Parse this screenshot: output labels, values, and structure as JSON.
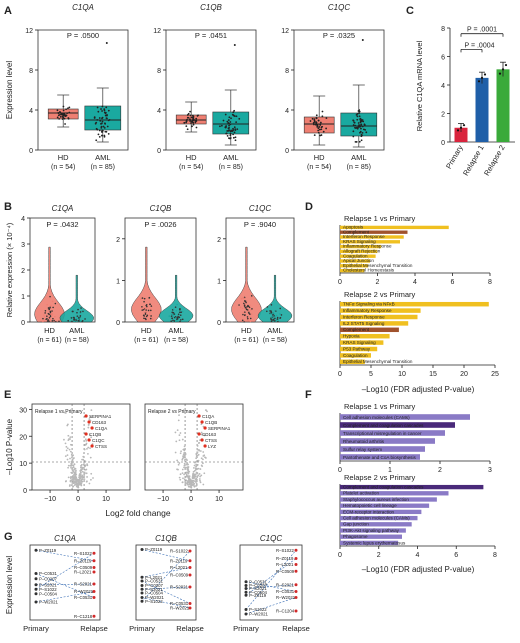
{
  "panels": {
    "A": "A",
    "B": "B",
    "C": "C",
    "D": "D",
    "E": "E",
    "F": "F",
    "G": "G"
  },
  "colors": {
    "hd_box": "#ef7f72",
    "aml_box": "#1aa9a0",
    "bar_primary": "#d9243d",
    "bar_relapse1": "#1f5fa8",
    "bar_relapse2": "#3aaa3a",
    "gsea_bar": "#f0c020",
    "kegg_bar_dark": "#4a2a7a",
    "kegg_bar": "#8a7ac6",
    "volcano_pt": "#b8b8b8",
    "volcano_hit": "#e03020",
    "pair_line": "#3b6fb5",
    "relapse_pt": "#d22a2a"
  },
  "chart_data": [
    {
      "id": "A",
      "type": "box",
      "ylabel": "Expression level",
      "ylim": [
        0,
        12
      ],
      "ticks": [
        0,
        4,
        8,
        12
      ],
      "groups": [
        "HD",
        "AML"
      ],
      "ns": [
        "(n = 54)",
        "(n = 85)"
      ],
      "subplots": [
        {
          "title": "C1QA",
          "p": "P = .0500",
          "boxes": [
            {
              "q1": 3.1,
              "med": 3.7,
              "q3": 4.1,
              "lo": 2.3,
              "hi": 5.5
            },
            {
              "q1": 2.0,
              "med": 3.0,
              "q3": 4.4,
              "lo": 0.8,
              "hi": 6.2
            }
          ]
        },
        {
          "title": "C1QB",
          "p": "P = .0451",
          "boxes": [
            {
              "q1": 2.6,
              "med": 3.0,
              "q3": 3.5,
              "lo": 1.8,
              "hi": 4.8
            },
            {
              "q1": 1.6,
              "med": 2.6,
              "q3": 3.8,
              "lo": 0.5,
              "hi": 6.0
            }
          ]
        },
        {
          "title": "C1QC",
          "p": "P = .0325",
          "boxes": [
            {
              "q1": 1.7,
              "med": 2.6,
              "q3": 3.3,
              "lo": 0.5,
              "hi": 5.4
            },
            {
              "q1": 1.4,
              "med": 2.4,
              "q3": 3.7,
              "lo": 0.3,
              "hi": 6.5
            }
          ]
        }
      ]
    },
    {
      "id": "C",
      "type": "bar",
      "ylabel": "Relative C1QA mRNA level",
      "ylim": [
        0,
        8
      ],
      "ticks": [
        0,
        2,
        4,
        6,
        8
      ],
      "categories": [
        "Primary",
        "Relapse 1",
        "Relapse 2"
      ],
      "values": [
        1.0,
        4.5,
        5.1
      ],
      "errors": [
        0.3,
        0.4,
        0.5
      ],
      "sig": [
        {
          "label": "P = .0004"
        },
        {
          "label": "P = .0001"
        }
      ]
    },
    {
      "id": "B",
      "type": "violin",
      "ylabel": "Relative expression (× 10⁻⁴)",
      "groups": [
        "HD",
        "AML"
      ],
      "ns": [
        "(n = 61)",
        "(n = 58)"
      ],
      "subplots": [
        {
          "title": "C1QA",
          "p": "P = .0432",
          "ticks": [
            "0",
            "1",
            "2",
            "3",
            "4"
          ],
          "ymax": 4
        },
        {
          "title": "C1QB",
          "p": "P = .0026",
          "ticks": [
            "0",
            "1",
            "2"
          ],
          "ymax": 2.5
        },
        {
          "title": "C1QC",
          "p": "P = .9040",
          "ticks": [
            "0",
            "1",
            "2"
          ],
          "ymax": 2.5
        }
      ]
    },
    {
      "id": "D",
      "type": "bar",
      "orientation": "horizontal",
      "xlabel": "–Log10 (FDR adjusted P-value)",
      "subplots": [
        {
          "title": "Relapse 1 vs Primary",
          "xlim": [
            0,
            8
          ],
          "ticks": [
            0,
            2,
            4,
            6,
            8
          ],
          "categories": [
            "Apoptosis",
            "Complement",
            "Interferon Response",
            "KRAS Signaling",
            "Inflammatory Response",
            "Allograft Rejection",
            "Coagulation",
            "Apical Junction",
            "Epithelial Mesenchymal Transition",
            "Cholesterol Homeostasis"
          ],
          "values": [
            5.8,
            3.6,
            3.4,
            3.2,
            2.2,
            2.0,
            1.9,
            1.6,
            1.5,
            1.3
          ],
          "highlight": [
            1
          ]
        },
        {
          "title": "Relapse 2 vs Primary",
          "xlim": [
            0,
            25
          ],
          "ticks": [
            0,
            5,
            10,
            15,
            20,
            25
          ],
          "categories": [
            "TNFα Signaling via NFκB",
            "Inflammatory Response",
            "Interferon Response",
            "IL2 STAT5 Signaling",
            "Complement",
            "Hypoxia",
            "KRAS Signaling",
            "P53 Pathway",
            "Coagulation",
            "Epithelial Mesenchymal Transition"
          ],
          "values": [
            24,
            13,
            12.5,
            11,
            9.5,
            8,
            7,
            6,
            5,
            4
          ],
          "highlight": [
            4
          ]
        }
      ]
    },
    {
      "id": "E",
      "type": "scatter",
      "xlabel": "Log2 fold change",
      "ylabel": "–Log10 P-value",
      "xticks": [
        "−10",
        "0",
        "10"
      ],
      "yticks": [
        "0",
        "10",
        "20",
        "30"
      ],
      "subplots": [
        {
          "title": "Relapse 1 vs Primary",
          "labels": [
            "SERPINA1",
            "CD163",
            "C1QA",
            "C1QB",
            "C1QC",
            "CTSS"
          ]
        },
        {
          "title": "Relapse 2 vs Primary",
          "labels": [
            "C1QA",
            "C1QB",
            "SERPINA1",
            "CD163",
            "CTSS",
            "LYZ"
          ]
        }
      ]
    },
    {
      "id": "F",
      "type": "bar",
      "orientation": "horizontal",
      "xlabel": "–Log10 (FDR adjusted P-value)",
      "subplots": [
        {
          "title": "Relapse 1 vs Primary",
          "xlim": [
            0,
            3
          ],
          "ticks": [
            0,
            1,
            2,
            3
          ],
          "categories": [
            "Cell adhesion molecules (CAMs)",
            "Complement and coagulation cascades",
            "Transcriptional misregulation in cancer",
            "Rheumatoid arthritis",
            "Sulfur relay system",
            "Pantothenate and CoA biosynthesis"
          ],
          "values": [
            2.6,
            2.3,
            2.1,
            1.9,
            1.7,
            1.6
          ],
          "highlight": [
            1
          ]
        },
        {
          "title": "Relapse 2 vs Primary",
          "xlim": [
            0,
            8
          ],
          "ticks": [
            0,
            2,
            4,
            6,
            8
          ],
          "categories": [
            "Complement and coagulation cascades",
            "Platelet activation",
            "Staphylococcus aureus infection",
            "Hematopoietic cell lineage",
            "ECM-receptor interaction",
            "Cell adhesion molecules (CAMs)",
            "Gap junction",
            "PI3K-Akt signaling pathway",
            "Phagosome",
            "Systemic lupus erythematosus"
          ],
          "values": [
            7.4,
            5.6,
            5.0,
            4.6,
            4.2,
            4.0,
            3.7,
            3.4,
            3.2,
            3.0
          ],
          "highlight": [
            0
          ]
        }
      ]
    },
    {
      "id": "G",
      "type": "line",
      "ylabel": "Expression level",
      "categories": [
        "Primary",
        "Relapse"
      ],
      "subplots": [
        {
          "title": "C1QA",
          "primary": [
            [
              "P–Z0119",
              0.93
            ],
            [
              "P–C0531",
              0.62
            ],
            [
              "P–C0207",
              0.55
            ],
            [
              "P–S2021",
              0.47
            ],
            [
              "P–S1022",
              0.41
            ],
            [
              "P–C0504",
              0.35
            ],
            [
              "P–W2021",
              0.24
            ]
          ],
          "relapse": [
            [
              "R–S1022",
              0.89
            ],
            [
              "R–Z0119",
              0.79
            ],
            [
              "R–C0509",
              0.7
            ],
            [
              "R–L2021",
              0.64
            ],
            [
              "R–S2021",
              0.48
            ],
            [
              "R–W2021",
              0.38
            ],
            [
              "R–C0531",
              0.3
            ],
            [
              "R–C1218",
              0.05
            ]
          ]
        },
        {
          "title": "C1QB",
          "primary": [
            [
              "P–Z0119",
              0.94
            ],
            [
              "P–L2021",
              0.57
            ],
            [
              "P–C0531",
              0.52
            ],
            [
              "P–C0207",
              0.46
            ],
            [
              "P–S2021",
              0.41
            ],
            [
              "P–C0504",
              0.36
            ],
            [
              "P–W2021",
              0.3
            ],
            [
              "P–S1022",
              0.25
            ]
          ],
          "relapse": [
            [
              "R–S1022",
              0.92
            ],
            [
              "R–Z0119",
              0.79
            ],
            [
              "R–L2021",
              0.7
            ],
            [
              "R–C0509",
              0.6
            ],
            [
              "R–S2021",
              0.44
            ],
            [
              "R–C0531",
              0.22
            ],
            [
              "R–W2021",
              0.16
            ]
          ]
        },
        {
          "title": "C1QC",
          "primary": [
            [
              "P–C0531",
              0.51
            ],
            [
              "P–C0207",
              0.46
            ],
            [
              "P–S2021",
              0.42
            ],
            [
              "P–C0504",
              0.37
            ],
            [
              "P–Z0119",
              0.33
            ],
            [
              "P–S1022",
              0.14
            ],
            [
              "P–W2021",
              0.08
            ]
          ],
          "relapse": [
            [
              "R–S1022",
              0.93
            ],
            [
              "R–Z0119",
              0.82
            ],
            [
              "R–L2021",
              0.74
            ],
            [
              "R–C0509",
              0.65
            ],
            [
              "R–S2021",
              0.47
            ],
            [
              "R–C0531",
              0.38
            ],
            [
              "R–W2021",
              0.3
            ],
            [
              "R–C1204",
              0.12
            ]
          ]
        }
      ]
    }
  ]
}
